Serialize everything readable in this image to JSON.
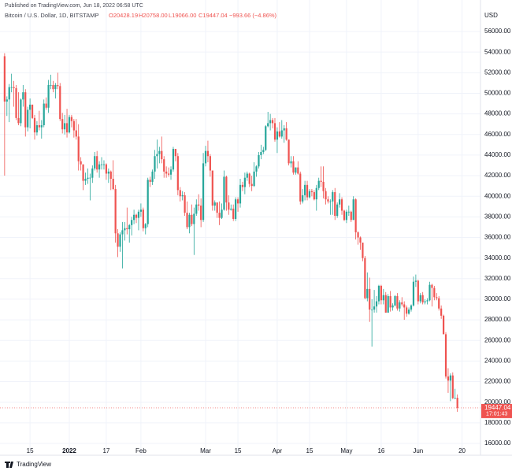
{
  "published": "Published on TradingView.com, Jun 18, 2022 06:58 UTC",
  "symbol": "Bitcoin / U.S. Dollar, 1D, BITSTAMP",
  "header_ohlc": [
    "O20428.19",
    "H20758.00",
    "L19066.00",
    "C19447.04"
  ],
  "change": "−993.66 (−4.86%)",
  "currency": "USD",
  "logo": "TradingView",
  "last_price_label": "19447.04",
  "countdown": "17:01:43",
  "chart_data": {
    "type": "candlestick",
    "up_color": "#26a69a",
    "down_color": "#ef5350",
    "grid": true,
    "xlim": [
      "2021-12-02",
      "2022-06-28"
    ],
    "ylim": [
      14850,
      56920
    ],
    "yticks": [
      {
        "value": 16000,
        "label": "16000.00"
      },
      {
        "value": 18000,
        "label": "18000.00"
      },
      {
        "value": 20000,
        "label": "20000.00"
      },
      {
        "value": 22000,
        "label": "22000.00"
      },
      {
        "value": 24000,
        "label": "24000.00"
      },
      {
        "value": 26000,
        "label": "26000.00"
      },
      {
        "value": 28000,
        "label": "28000.00"
      },
      {
        "value": 30000,
        "label": "30000.00"
      },
      {
        "value": 32000,
        "label": "32000.00"
      },
      {
        "value": 34000,
        "label": "34000.00"
      },
      {
        "value": 36000,
        "label": "36000.00"
      },
      {
        "value": 38000,
        "label": "38000.00"
      },
      {
        "value": 40000,
        "label": "40000.00"
      },
      {
        "value": 42000,
        "label": "42000.00"
      },
      {
        "value": 44000,
        "label": "44000.00"
      },
      {
        "value": 46000,
        "label": "46000.00"
      },
      {
        "value": 48000,
        "label": "48000.00"
      },
      {
        "value": 50000,
        "label": "50000.00"
      },
      {
        "value": 52000,
        "label": "52000.00"
      },
      {
        "value": 54000,
        "label": "54000.00"
      },
      {
        "value": 56000,
        "label": "56000.00"
      }
    ],
    "xticks": [
      {
        "value": "2021-12-15",
        "label": "15"
      },
      {
        "value": "2022-01-01",
        "label": "2022"
      },
      {
        "value": "2022-01-17",
        "label": "17"
      },
      {
        "value": "2022-02-01",
        "label": "Feb"
      },
      {
        "value": "2022-03-01",
        "label": "Mar"
      },
      {
        "value": "2022-03-15",
        "label": "15"
      },
      {
        "value": "2022-04-01",
        "label": "Apr"
      },
      {
        "value": "2022-04-15",
        "label": "15"
      },
      {
        "value": "2022-05-01",
        "label": "May"
      },
      {
        "value": "2022-05-16",
        "label": "16"
      },
      {
        "value": "2022-06-01",
        "label": "Jun"
      },
      {
        "value": "2022-06-20",
        "label": "20"
      }
    ],
    "x": [
      "2021-12-04",
      "2021-12-05",
      "2021-12-06",
      "2021-12-07",
      "2021-12-08",
      "2021-12-09",
      "2021-12-10",
      "2021-12-11",
      "2021-12-12",
      "2021-12-13",
      "2021-12-14",
      "2021-12-15",
      "2021-12-16",
      "2021-12-17",
      "2021-12-18",
      "2021-12-19",
      "2021-12-20",
      "2021-12-21",
      "2021-12-22",
      "2021-12-23",
      "2021-12-24",
      "2021-12-25",
      "2021-12-26",
      "2021-12-27",
      "2021-12-28",
      "2021-12-29",
      "2021-12-30",
      "2021-12-31",
      "2022-01-01",
      "2022-01-02",
      "2022-01-03",
      "2022-01-04",
      "2022-01-05",
      "2022-01-06",
      "2022-01-07",
      "2022-01-08",
      "2022-01-09",
      "2022-01-10",
      "2022-01-11",
      "2022-01-12",
      "2022-01-13",
      "2022-01-14",
      "2022-01-15",
      "2022-01-16",
      "2022-01-17",
      "2022-01-18",
      "2022-01-19",
      "2022-01-20",
      "2022-01-21",
      "2022-01-22",
      "2022-01-23",
      "2022-01-24",
      "2022-01-25",
      "2022-01-26",
      "2022-01-27",
      "2022-01-28",
      "2022-01-29",
      "2022-01-30",
      "2022-01-31",
      "2022-02-01",
      "2022-02-02",
      "2022-02-03",
      "2022-02-04",
      "2022-02-05",
      "2022-02-06",
      "2022-02-07",
      "2022-02-08",
      "2022-02-09",
      "2022-02-10",
      "2022-02-11",
      "2022-02-12",
      "2022-02-13",
      "2022-02-14",
      "2022-02-15",
      "2022-02-16",
      "2022-02-17",
      "2022-02-18",
      "2022-02-19",
      "2022-02-20",
      "2022-02-21",
      "2022-02-22",
      "2022-02-23",
      "2022-02-24",
      "2022-02-25",
      "2022-02-26",
      "2022-02-27",
      "2022-02-28",
      "2022-03-01",
      "2022-03-02",
      "2022-03-03",
      "2022-03-04",
      "2022-03-05",
      "2022-03-06",
      "2022-03-07",
      "2022-03-08",
      "2022-03-09",
      "2022-03-10",
      "2022-03-11",
      "2022-03-12",
      "2022-03-13",
      "2022-03-14",
      "2022-03-15",
      "2022-03-16",
      "2022-03-17",
      "2022-03-18",
      "2022-03-19",
      "2022-03-20",
      "2022-03-21",
      "2022-03-22",
      "2022-03-23",
      "2022-03-24",
      "2022-03-25",
      "2022-03-26",
      "2022-03-27",
      "2022-03-28",
      "2022-03-29",
      "2022-03-30",
      "2022-03-31",
      "2022-04-01",
      "2022-04-02",
      "2022-04-03",
      "2022-04-04",
      "2022-04-05",
      "2022-04-06",
      "2022-04-07",
      "2022-04-08",
      "2022-04-09",
      "2022-04-10",
      "2022-04-11",
      "2022-04-12",
      "2022-04-13",
      "2022-04-14",
      "2022-04-15",
      "2022-04-16",
      "2022-04-17",
      "2022-04-18",
      "2022-04-19",
      "2022-04-20",
      "2022-04-21",
      "2022-04-22",
      "2022-04-23",
      "2022-04-24",
      "2022-04-25",
      "2022-04-26",
      "2022-04-27",
      "2022-04-28",
      "2022-04-29",
      "2022-04-30",
      "2022-05-01",
      "2022-05-02",
      "2022-05-03",
      "2022-05-04",
      "2022-05-05",
      "2022-05-06",
      "2022-05-07",
      "2022-05-08",
      "2022-05-09",
      "2022-05-10",
      "2022-05-11",
      "2022-05-12",
      "2022-05-13",
      "2022-05-14",
      "2022-05-15",
      "2022-05-16",
      "2022-05-17",
      "2022-05-18",
      "2022-05-19",
      "2022-05-20",
      "2022-05-21",
      "2022-05-22",
      "2022-05-23",
      "2022-05-24",
      "2022-05-25",
      "2022-05-26",
      "2022-05-27",
      "2022-05-28",
      "2022-05-29",
      "2022-05-30",
      "2022-05-31",
      "2022-06-01",
      "2022-06-02",
      "2022-06-03",
      "2022-06-04",
      "2022-06-05",
      "2022-06-06",
      "2022-06-07",
      "2022-06-08",
      "2022-06-09",
      "2022-06-10",
      "2022-06-11",
      "2022-06-12",
      "2022-06-13",
      "2022-06-14",
      "2022-06-15",
      "2022-06-16",
      "2022-06-17",
      "2022-06-18"
    ],
    "open": [
      53600,
      49200,
      49400,
      50600,
      50600,
      50500,
      47600,
      47100,
      49400,
      50100,
      46700,
      48400,
      48900,
      47600,
      46200,
      46900,
      46700,
      46900,
      49000,
      48600,
      50800,
      50800,
      50400,
      50800,
      50700,
      47500,
      46500,
      47100,
      46200,
      47700,
      47300,
      46400,
      45800,
      43400,
      43100,
      41500,
      41700,
      41800,
      41800,
      42700,
      43900,
      42600,
      43100,
      43100,
      43100,
      42200,
      42400,
      41700,
      40700,
      36400,
      35100,
      36300,
      36700,
      36900,
      36800,
      37200,
      37700,
      38200,
      37900,
      38500,
      38700,
      36900,
      37300,
      41600,
      41400,
      42400,
      43900,
      44100,
      44400,
      43600,
      42400,
      42200,
      42100,
      42600,
      44600,
      43900,
      40600,
      40000,
      40100,
      38400,
      37000,
      38200,
      37300,
      38300,
      39200,
      39100,
      37700,
      43200,
      44400,
      43900,
      42500,
      39100,
      39400,
      38400,
      37900,
      38700,
      41900,
      39400,
      38700,
      38800,
      37800,
      39700,
      39300,
      41100,
      40900,
      41800,
      42200,
      41200,
      41000,
      42400,
      42900,
      44000,
      44300,
      44500,
      46800,
      47100,
      47400,
      47100,
      45500,
      46300,
      45800,
      46400,
      46600,
      45500,
      43200,
      43400,
      42300,
      42800,
      42200,
      39500,
      40100,
      41100,
      39900,
      40500,
      40400,
      39700,
      40800,
      41500,
      41400,
      40500,
      39700,
      39500,
      39500,
      40400,
      38100,
      39200,
      39700,
      38600,
      37700,
      38500,
      38500,
      37700,
      39700,
      36500,
      36000,
      35500,
      34000,
      30100,
      31000,
      29000,
      29000,
      29300,
      29800,
      31300,
      29900,
      30400,
      28700,
      30300,
      29200,
      29400,
      30300,
      29100,
      29700,
      29500,
      29200,
      28600,
      29000,
      29400,
      31700,
      31800,
      29800,
      30400,
      29700,
      29800,
      29900,
      31400,
      31100,
      30200,
      30100,
      29100,
      28400,
      26600,
      22500,
      22100,
      22600,
      20400,
      20428.19
    ],
    "high": [
      53900,
      49700,
      50900,
      51900,
      51200,
      50800,
      50100,
      49500,
      50800,
      50400,
      48700,
      49500,
      48900,
      47900,
      47300,
      48300,
      47400,
      49400,
      49600,
      51300,
      51800,
      51200,
      51000,
      52000,
      51000,
      48100,
      47900,
      48500,
      47900,
      47900,
      47500,
      47500,
      47000,
      43800,
      43100,
      42300,
      42700,
      42200,
      43000,
      44300,
      44400,
      43400,
      43800,
      43500,
      43200,
      42700,
      42500,
      43500,
      41100,
      36800,
      36500,
      37500,
      37500,
      38900,
      37300,
      38000,
      38700,
      38300,
      38700,
      39300,
      38900,
      37400,
      41800,
      41900,
      42600,
      44500,
      45500,
      44800,
      45800,
      43900,
      42900,
      42800,
      42900,
      44800,
      44600,
      44200,
      40900,
      40500,
      40400,
      39500,
      38400,
      39200,
      38900,
      39700,
      40200,
      39800,
      44200,
      44900,
      45400,
      44100,
      42500,
      39600,
      39400,
      39500,
      39300,
      42500,
      42000,
      40100,
      39200,
      39200,
      39900,
      39900,
      41700,
      41400,
      42300,
      42400,
      42300,
      42000,
      43300,
      43000,
      44300,
      45000,
      44800,
      46900,
      48200,
      48000,
      47600,
      47600,
      46700,
      47200,
      47400,
      46900,
      47200,
      45500,
      43900,
      43900,
      42800,
      43400,
      42400,
      40700,
      41500,
      41500,
      40700,
      40700,
      40600,
      41100,
      41800,
      42900,
      42900,
      40800,
      40000,
      39700,
      40600,
      40800,
      39400,
      40300,
      39900,
      38700,
      38700,
      39100,
      38600,
      40000,
      39800,
      36600,
      36100,
      35500,
      34200,
      32600,
      32100,
      30000,
      30900,
      30300,
      31400,
      31400,
      31000,
      30700,
      30500,
      30800,
      29600,
      30400,
      30600,
      29900,
      30200,
      29800,
      29400,
      29200,
      29500,
      32200,
      32400,
      31900,
      30600,
      30700,
      30000,
      30100,
      31700,
      31500,
      31300,
      30600,
      30300,
      29400,
      28500,
      26800,
      23300,
      22800,
      22900,
      21300,
      20758
    ],
    "low": [
      42000,
      47800,
      47200,
      50100,
      48700,
      47400,
      46900,
      46800,
      48700,
      45800,
      46300,
      46600,
      47500,
      45500,
      45900,
      46400,
      45600,
      46700,
      48400,
      48100,
      50400,
      50100,
      49500,
      50400,
      47300,
      46100,
      46000,
      45700,
      46100,
      46700,
      45700,
      45500,
      42500,
      42500,
      40600,
      41100,
      41200,
      39600,
      41300,
      42500,
      42300,
      41800,
      42600,
      42600,
      41600,
      41300,
      40600,
      40600,
      35500,
      34100,
      34600,
      33000,
      35700,
      36300,
      35500,
      36200,
      37300,
      37400,
      36700,
      38000,
      36600,
      36300,
      37000,
      40900,
      41100,
      41700,
      42700,
      43200,
      43200,
      41800,
      41800,
      41900,
      41600,
      42400,
      43400,
      40100,
      39500,
      39600,
      38100,
      36800,
      36400,
      37100,
      34300,
      38100,
      38600,
      37000,
      37500,
      42900,
      43300,
      41900,
      38600,
      38600,
      37900,
      37200,
      37800,
      38600,
      38600,
      38200,
      38600,
      37600,
      37600,
      38500,
      38900,
      40500,
      40200,
      41500,
      40900,
      40500,
      40900,
      41900,
      42700,
      43600,
      44100,
      44400,
      46700,
      46400,
      46600,
      45300,
      44200,
      45700,
      45600,
      45200,
      45400,
      43000,
      42800,
      42100,
      42100,
      42100,
      39200,
      39300,
      39600,
      39600,
      39800,
      40000,
      39600,
      38600,
      40600,
      40900,
      39800,
      39200,
      39300,
      38200,
      38200,
      37700,
      37900,
      38900,
      38200,
      37600,
      37400,
      38100,
      37500,
      37700,
      35800,
      35300,
      34800,
      33700,
      30000,
      29800,
      27800,
      25400,
      28700,
      28700,
      29500,
      29500,
      29500,
      28700,
      28700,
      28800,
      28900,
      29300,
      28900,
      28800,
      29300,
      28000,
      28300,
      28500,
      28800,
      29300,
      31200,
      29500,
      29600,
      29500,
      29500,
      29500,
      29800,
      29300,
      29900,
      29900,
      28900,
      28100,
      26600,
      22300,
      20900,
      20100,
      20300,
      20300,
      19066
    ],
    "close": [
      49200,
      49400,
      50600,
      50600,
      50500,
      47600,
      47100,
      49400,
      50100,
      46700,
      48400,
      48900,
      47600,
      46200,
      46900,
      46700,
      46900,
      49000,
      48600,
      50800,
      50800,
      50400,
      50800,
      50700,
      47500,
      46500,
      47100,
      46200,
      47700,
      47300,
      46400,
      45800,
      43400,
      43100,
      41500,
      41700,
      41800,
      41800,
      42700,
      43900,
      42600,
      43100,
      43100,
      43100,
      42200,
      42400,
      41700,
      40700,
      36400,
      35100,
      36300,
      36700,
      36900,
      36800,
      37200,
      37700,
      38200,
      37900,
      38500,
      38700,
      36900,
      37300,
      41600,
      41400,
      42400,
      43900,
      44100,
      44400,
      43600,
      42400,
      42200,
      42100,
      42600,
      44600,
      43900,
      40600,
      40000,
      40100,
      38400,
      37000,
      38200,
      37300,
      38300,
      39200,
      39100,
      37700,
      43200,
      44400,
      43900,
      42500,
      39100,
      39400,
      38400,
      37900,
      38700,
      41900,
      39400,
      38700,
      38800,
      37800,
      39700,
      39300,
      41100,
      40900,
      41800,
      42200,
      41200,
      41000,
      42400,
      42900,
      44000,
      44300,
      44500,
      46800,
      47100,
      47400,
      47100,
      45500,
      46300,
      45800,
      46400,
      46600,
      45500,
      43200,
      43400,
      42300,
      42800,
      42200,
      39500,
      40100,
      41100,
      39900,
      40500,
      40400,
      39700,
      40800,
      41500,
      41400,
      40500,
      39700,
      39500,
      39500,
      40400,
      38100,
      39200,
      39700,
      38600,
      37700,
      38500,
      38500,
      37700,
      39700,
      36500,
      36000,
      35500,
      34000,
      30100,
      31000,
      29000,
      29000,
      29300,
      29800,
      31300,
      29900,
      30400,
      28700,
      30300,
      29200,
      29400,
      30300,
      29100,
      29700,
      29500,
      29200,
      28600,
      29000,
      29400,
      31700,
      31800,
      29800,
      30400,
      29700,
      29800,
      29900,
      31400,
      31100,
      30200,
      30100,
      29100,
      28400,
      26600,
      22500,
      22100,
      22600,
      20400,
      20428.19,
      19447.04
    ]
  }
}
